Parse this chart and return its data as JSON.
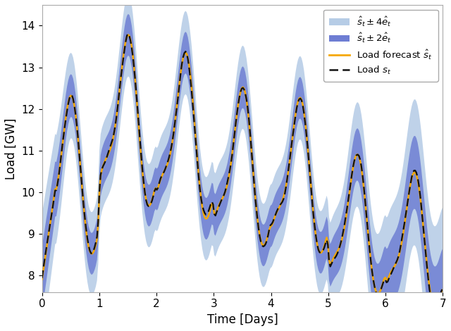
{
  "title": "",
  "xlabel": "Time [Days]",
  "ylabel": "Load [GW]",
  "xlim": [
    0,
    7
  ],
  "ylim": [
    7.6,
    14.5
  ],
  "yticks": [
    8,
    9,
    10,
    11,
    12,
    13,
    14
  ],
  "xticks": [
    0,
    1,
    2,
    3,
    4,
    5,
    6,
    7
  ],
  "color_band4": "#aac4e2",
  "color_band2": "#5566cc",
  "color_forecast": "#f5a800",
  "color_load": "#111111",
  "legend_labels": [
    "$\\hat{s}_t \\pm 4\\hat{e}_t$",
    "$\\hat{s}_t \\pm 2\\hat{e}_t$",
    "Load forecast $\\hat{s}_t$",
    "Load $s_t$"
  ],
  "figsize": [
    6.4,
    4.7
  ],
  "dpi": 100
}
